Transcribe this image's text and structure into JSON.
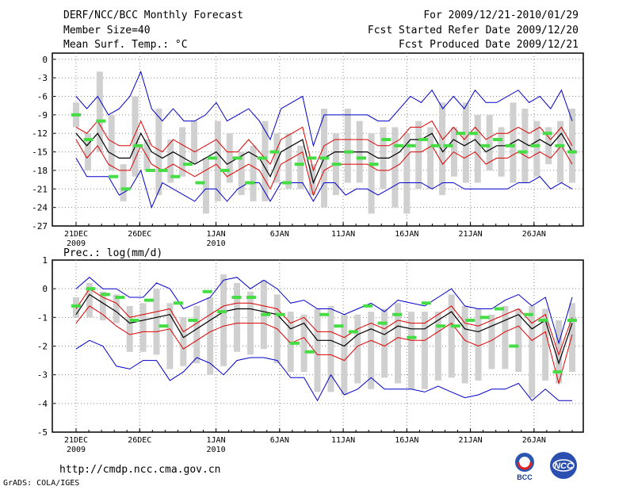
{
  "header": {
    "title": "DERF/NCC/BCC Monthly Forecast",
    "members": "Member Size=40",
    "variable": "Mean Surf. Temp.: °C",
    "period": "For 2009/12/21-2010/01/29",
    "started": "Fcst Started Refer Date 2009/12/20",
    "produced": "Fcst Produced Date 2009/12/21"
  },
  "footer": {
    "url": "http://cmdp.ncc.cma.gov.cn",
    "credit": "GrADS: COLA/IGES",
    "logo1_text": "BCC",
    "logo2_text": "NCC"
  },
  "colors": {
    "envelope": "#0000cc",
    "spread": "#dd0000",
    "mean": "#000000",
    "obs": "#44dd44",
    "bar": "#d0d0d0"
  },
  "chart_data": [
    {
      "type": "line",
      "title": "Mean Surf. Temp.: °C",
      "ylim": [
        -27,
        1
      ],
      "yticks": [
        0,
        -3,
        -6,
        -9,
        -12,
        -15,
        -18,
        -21,
        -24,
        -27
      ],
      "xtick_labels": [
        {
          "day": 1,
          "label": "21DEC",
          "sub": "2009"
        },
        {
          "day": 6,
          "label": "26DEC",
          "sub": ""
        },
        {
          "day": 12,
          "label": "1JAN",
          "sub": "2010"
        },
        {
          "day": 17,
          "label": "6JAN",
          "sub": ""
        },
        {
          "day": 22,
          "label": "11JAN",
          "sub": ""
        },
        {
          "day": 27,
          "label": "16JAN",
          "sub": ""
        },
        {
          "day": 32,
          "label": "21JAN",
          "sub": ""
        },
        {
          "day": 37,
          "label": "26JAN",
          "sub": ""
        }
      ],
      "days": 40,
      "upper": [
        -6,
        -8,
        -6,
        -9,
        -8,
        -6,
        -2,
        -8,
        -10,
        -8,
        -10,
        -10,
        -9,
        -7,
        -10,
        -9,
        -8,
        -10,
        -13,
        -8,
        -7,
        -6,
        -14,
        -9,
        -9,
        -9,
        -9,
        -9,
        -10,
        -10,
        -8,
        -6,
        -7,
        -5,
        -8,
        -6,
        -8,
        -5,
        -7,
        -7,
        -6,
        -5,
        -7,
        -6,
        -8,
        -5,
        -10
      ],
      "spread_hi": [
        -11,
        -12,
        -10,
        -13,
        -14,
        -14,
        -10,
        -14,
        -15,
        -13,
        -14,
        -15,
        -14,
        -13,
        -15,
        -15,
        -13,
        -15,
        -17,
        -13,
        -12,
        -11,
        -18,
        -14,
        -13,
        -13,
        -13,
        -13,
        -14,
        -14,
        -13,
        -11,
        -11,
        -10,
        -13,
        -11,
        -13,
        -11,
        -13,
        -12,
        -12,
        -11,
        -12,
        -11,
        -13,
        -11,
        -14
      ],
      "mean": [
        -12,
        -14,
        -12,
        -15,
        -16,
        -16,
        -12,
        -15,
        -16,
        -15,
        -16,
        -17,
        -16,
        -15,
        -17,
        -16,
        -15,
        -16,
        -19,
        -15,
        -14,
        -13,
        -20,
        -16,
        -15,
        -15,
        -15,
        -15,
        -16,
        -16,
        -15,
        -13,
        -13,
        -12,
        -15,
        -13,
        -14,
        -13,
        -15,
        -14,
        -14,
        -13,
        -14,
        -13,
        -14,
        -12,
        -15
      ],
      "spread_lo": [
        -13,
        -16,
        -14,
        -17,
        -18,
        -18,
        -14,
        -17,
        -18,
        -17,
        -18,
        -19,
        -18,
        -17,
        -19,
        -18,
        -17,
        -18,
        -21,
        -17,
        -16,
        -15,
        -22,
        -18,
        -17,
        -17,
        -17,
        -17,
        -18,
        -18,
        -17,
        -15,
        -15,
        -14,
        -17,
        -15,
        -16,
        -15,
        -17,
        -16,
        -16,
        -15,
        -16,
        -15,
        -16,
        -14,
        -17
      ],
      "lower": [
        -16,
        -19,
        -19,
        -19,
        -22,
        -21,
        -18,
        -24,
        -20,
        -21,
        -22,
        -23,
        -21,
        -21,
        -23,
        -21,
        -20,
        -20,
        -23,
        -20,
        -20,
        -20,
        -23,
        -20,
        -20,
        -22,
        -21,
        -21,
        -22,
        -21,
        -20,
        -20,
        -20,
        -21,
        -20,
        -20,
        -21,
        -21,
        -21,
        -21,
        -21,
        -20,
        -20,
        -19,
        -21,
        -20,
        -21
      ],
      "bars": [
        [
          -7,
          -11
        ],
        [
          -12,
          -18
        ],
        [
          -2,
          -15
        ],
        [
          -9,
          -18
        ],
        [
          -17,
          -23
        ],
        [
          -6,
          -19
        ],
        [
          -13,
          -18
        ],
        [
          -8,
          -22
        ],
        [
          -13,
          -20
        ],
        [
          -11,
          -19
        ],
        [
          -10,
          -17
        ],
        [
          -16,
          -25
        ],
        [
          -10,
          -23
        ],
        [
          -12,
          -20
        ],
        [
          -15,
          -22
        ],
        [
          -14,
          -23
        ],
        [
          -10,
          -23
        ],
        [
          -12,
          -20
        ],
        [
          -12,
          -21
        ],
        [
          -14,
          -21
        ],
        [
          -17,
          -22
        ],
        [
          -8,
          -24
        ],
        [
          -12,
          -22
        ],
        [
          -8,
          -20
        ],
        [
          -10,
          -20
        ],
        [
          -12,
          -25
        ],
        [
          -11,
          -21
        ],
        [
          -11,
          -24
        ],
        [
          -12,
          -25
        ],
        [
          -10,
          -21
        ],
        [
          -11,
          -21
        ],
        [
          -7,
          -22
        ],
        [
          -11,
          -19
        ],
        [
          -7,
          -20
        ],
        [
          -9,
          -20
        ],
        [
          -9,
          -18
        ],
        [
          -11,
          -19
        ],
        [
          -7,
          -20
        ],
        [
          -8,
          -20
        ],
        [
          -10,
          -19
        ],
        [
          -11,
          -17
        ],
        [
          -10,
          -20
        ],
        [
          -8,
          -20
        ]
      ],
      "obs": [
        -9,
        -13,
        -10,
        -19,
        -21,
        -14,
        -18,
        -18,
        -19,
        -17,
        -20,
        -16,
        -18,
        -16,
        -20,
        -16,
        -15,
        -20,
        -17,
        -16,
        -16,
        -17,
        -15,
        -16,
        -17,
        -13,
        -14,
        -14,
        -13,
        -14,
        -14,
        -12,
        -12,
        -14,
        -13,
        -14,
        -15,
        -14,
        -12,
        -14,
        -15
      ]
    },
    {
      "type": "line",
      "title": "Prec.: log(mm/d)",
      "ylim": [
        -5,
        1
      ],
      "yticks": [
        1,
        0,
        -1,
        -2,
        -3,
        -4,
        -5
      ],
      "xtick_labels": [
        {
          "day": 1,
          "label": "21DEC",
          "sub": "2009"
        },
        {
          "day": 6,
          "label": "26DEC",
          "sub": ""
        },
        {
          "day": 12,
          "label": "1JAN",
          "sub": "2010"
        },
        {
          "day": 17,
          "label": "6JAN",
          "sub": ""
        },
        {
          "day": 22,
          "label": "11JAN",
          "sub": ""
        },
        {
          "day": 27,
          "label": "16JAN",
          "sub": ""
        },
        {
          "day": 32,
          "label": "21JAN",
          "sub": ""
        },
        {
          "day": 37,
          "label": "26JAN",
          "sub": ""
        }
      ],
      "days": 40,
      "upper": [
        0,
        0.4,
        0,
        0,
        -0.3,
        -0.3,
        0.2,
        0,
        -0.7,
        -0.5,
        -0.3,
        0.3,
        0.4,
        0,
        0.3,
        0,
        -0.5,
        -0.4,
        -0.7,
        -0.7,
        -0.9,
        -0.7,
        -0.5,
        -0.8,
        -0.4,
        -0.5,
        -0.6,
        -0.3,
        0,
        -0.6,
        -0.7,
        -0.7,
        -0.4,
        -0.2,
        -0.6,
        -0.3,
        -1.9,
        -0.3
      ],
      "spread_hi": [
        -0.7,
        0,
        -0.3,
        -0.5,
        -1,
        -0.9,
        -0.8,
        -0.7,
        -1.5,
        -1.2,
        -0.9,
        -0.6,
        -0.5,
        -0.5,
        -0.6,
        -0.7,
        -1.2,
        -1.0,
        -1.5,
        -1.5,
        -1.7,
        -1.4,
        -1.2,
        -1.4,
        -1.1,
        -1.2,
        -1.2,
        -0.9,
        -0.6,
        -1.2,
        -1.3,
        -1.1,
        -0.9,
        -0.7,
        -1.2,
        -0.9,
        -2.3,
        -1.0
      ],
      "mean": [
        -0.9,
        -0.2,
        -0.5,
        -0.8,
        -1.2,
        -1.1,
        -1.0,
        -0.9,
        -1.7,
        -1.4,
        -1.1,
        -0.8,
        -0.7,
        -0.7,
        -0.8,
        -0.9,
        -1.4,
        -1.2,
        -1.8,
        -1.8,
        -2.0,
        -1.6,
        -1.4,
        -1.6,
        -1.3,
        -1.4,
        -1.4,
        -1.1,
        -0.8,
        -1.4,
        -1.5,
        -1.3,
        -1.1,
        -0.9,
        -1.4,
        -1.1,
        -2.6,
        -1.2
      ],
      "spread_lo": [
        -1.2,
        -0.6,
        -0.9,
        -1.3,
        -1.6,
        -1.5,
        -1.5,
        -1.4,
        -2.1,
        -1.8,
        -1.5,
        -1.3,
        -1.2,
        -1.2,
        -1.2,
        -1.4,
        -1.9,
        -1.7,
        -2.3,
        -2.3,
        -2.5,
        -2.0,
        -1.8,
        -2.0,
        -1.7,
        -1.8,
        -1.8,
        -1.5,
        -1.2,
        -1.8,
        -2.0,
        -1.8,
        -1.5,
        -1.3,
        -1.8,
        -1.5,
        -3.3,
        -1.6
      ],
      "lower": [
        -2.1,
        -1.8,
        -2.0,
        -2.7,
        -2.8,
        -2.5,
        -2.5,
        -3.2,
        -2.9,
        -2.4,
        -2.6,
        -3.0,
        -2.5,
        -2.4,
        -2.4,
        -2.5,
        -3.1,
        -3.1,
        -3.9,
        -3.0,
        -3.7,
        -3.5,
        -3.1,
        -3.5,
        -3.5,
        -3.5,
        -3.6,
        -3.4,
        -3.6,
        -3.8,
        -3.7,
        -3.5,
        -3.5,
        -3.3,
        -3.9,
        -3.5,
        -3.9,
        -3.9
      ],
      "bars": [
        [
          -0.3,
          -1.0
        ],
        [
          0.2,
          -1.0
        ],
        [
          -0.1,
          -1.1
        ],
        [
          -0.2,
          -1.2
        ],
        [
          -0.6,
          -2.2
        ],
        [
          -0.5,
          -2.2
        ],
        [
          0,
          -2.3
        ],
        [
          -0.5,
          -2.8
        ],
        [
          -1.0,
          -2.7
        ],
        [
          -0.6,
          -2.6
        ],
        [
          -0.3,
          -3.0
        ],
        [
          0.5,
          -2.7
        ],
        [
          0.2,
          -2.2
        ],
        [
          -0.1,
          -2.3
        ],
        [
          0.3,
          -2.1
        ],
        [
          -0.2,
          -2.6
        ],
        [
          -0.8,
          -2.9
        ],
        [
          -0.9,
          -2.9
        ],
        [
          -0.7,
          -3.6
        ],
        [
          -0.6,
          -3.6
        ],
        [
          -0.9,
          -3.7
        ],
        [
          -0.9,
          -3.3
        ],
        [
          -0.8,
          -3.5
        ],
        [
          -0.7,
          -3.1
        ],
        [
          -0.5,
          -3.3
        ],
        [
          -0.8,
          -3.5
        ],
        [
          -0.8,
          -3.5
        ],
        [
          -0.8,
          -3.2
        ],
        [
          -0.2,
          -3.1
        ],
        [
          -0.6,
          -3.3
        ],
        [
          -0.7,
          -3.2
        ],
        [
          -0.9,
          -2.8
        ],
        [
          -0.6,
          -2.8
        ],
        [
          -0.7,
          -2.9
        ],
        [
          -0.6,
          -3.8
        ],
        [
          -0.7,
          -3.2
        ],
        [
          -1.1,
          -3.3
        ],
        [
          -0.5,
          -2.9
        ]
      ],
      "obs": [
        -0.6,
        0,
        -0.2,
        -0.3,
        -1.1,
        -0.4,
        -1.3,
        -0.5,
        -1.1,
        -0.1,
        -0.8,
        -0.3,
        -0.3,
        -0.9,
        -0.9,
        -1.9,
        -2.2,
        -0.9,
        -1.3,
        -1.5,
        -0.6,
        -1.2,
        -0.9,
        -1.7,
        -0.5,
        -1.3,
        -1.3,
        -1.1,
        -1.0,
        -0.7,
        -2.0,
        -0.9,
        -1.1,
        -2.9,
        -1.1
      ]
    }
  ]
}
